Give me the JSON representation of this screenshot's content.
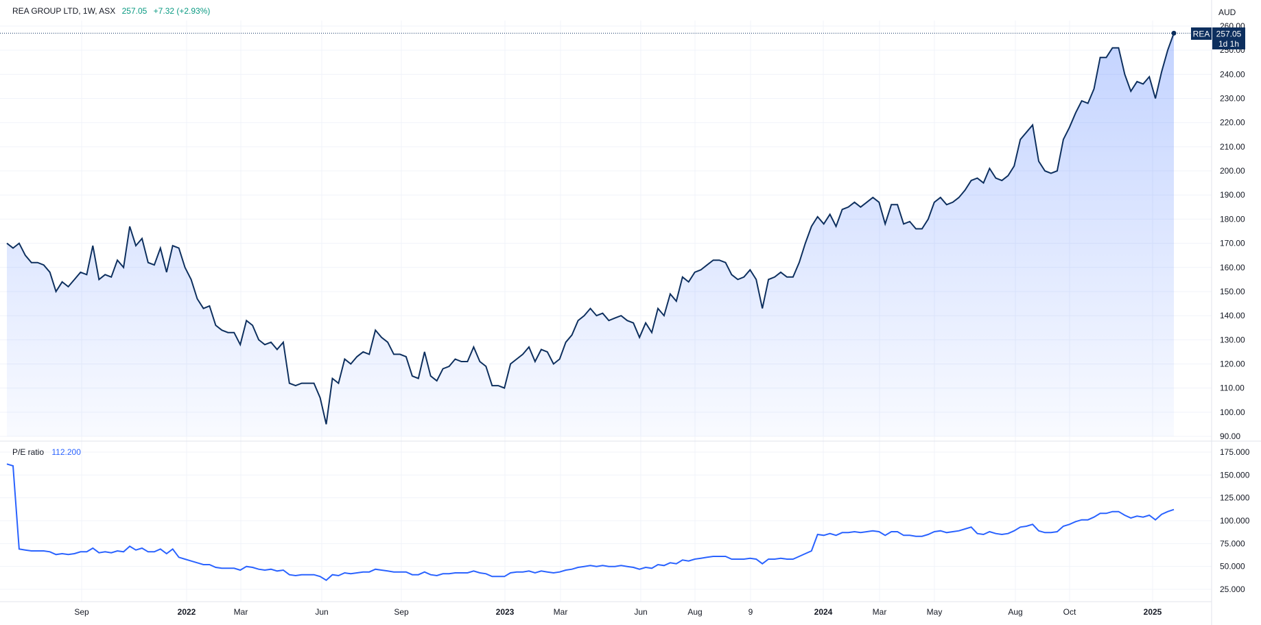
{
  "header": {
    "symbol": "REA GROUP LTD, 1W, ASX",
    "last": "257.05",
    "change": "+7.32 (+2.93%)"
  },
  "currency": "AUD",
  "price_tag": {
    "ticker": "REA",
    "value": "257.05",
    "countdown": "1d 1h"
  },
  "pe_panel": {
    "label": "P/E ratio",
    "value": "112.200"
  },
  "x_axis_labels": [
    "Sep",
    "2022",
    "Mar",
    "Jun",
    "Sep",
    "2023",
    "Mar",
    "Jun",
    "Aug",
    "9",
    "2024",
    "Mar",
    "May",
    "Aug",
    "Oct",
    "2025"
  ],
  "colors": {
    "price_line": "#0d2f5e",
    "price_fill": "#2962ff",
    "pe_line": "#2962ff",
    "grid": "#f0f3fa",
    "tag_bg": "#0d2f5e",
    "axis_text": "#131722",
    "pe_value": "#2962ff",
    "up": "#089981"
  },
  "chart_data": [
    {
      "type": "area",
      "series": [
        {
          "name": "REA",
          "values": [
            170,
            168,
            170,
            165,
            162,
            162,
            161,
            158,
            150,
            154,
            152,
            155,
            158,
            157,
            169,
            155,
            157,
            156,
            163,
            160,
            177,
            169,
            172,
            162,
            161,
            168,
            158,
            169,
            168,
            160,
            155,
            147,
            143,
            144,
            136,
            134,
            133,
            133,
            128,
            138,
            136,
            130,
            128,
            129,
            126,
            129,
            112,
            111,
            112,
            112,
            112,
            106,
            95,
            114,
            112,
            122,
            120,
            123,
            125,
            124,
            134,
            131,
            129,
            124,
            124,
            123,
            115,
            114,
            125,
            115,
            113,
            118,
            119,
            122,
            121,
            121,
            127,
            121,
            119,
            111,
            111,
            110,
            120,
            122,
            124,
            127,
            121,
            126,
            125,
            120,
            122,
            129,
            132,
            138,
            140,
            143,
            140,
            141,
            138,
            139,
            140,
            138,
            137,
            131,
            137,
            133,
            143,
            140,
            149,
            146,
            156,
            154,
            158,
            159,
            161,
            163,
            163,
            162,
            157,
            155,
            156,
            159,
            155,
            143,
            155,
            156,
            158,
            156,
            156,
            162,
            170,
            177,
            181,
            178,
            182,
            177,
            184,
            185,
            187,
            185,
            187,
            189,
            187,
            178,
            186,
            186,
            178,
            179,
            176,
            176,
            180,
            187,
            189,
            186,
            187,
            189,
            192,
            196,
            197,
            195,
            201,
            197,
            196,
            198,
            202,
            213,
            216,
            219,
            204,
            200,
            199,
            200,
            213,
            218,
            224,
            229,
            228,
            234,
            247,
            247,
            251,
            251,
            240,
            233,
            237,
            236,
            239,
            230,
            241,
            250,
            257.05
          ]
        }
      ],
      "ylim": [
        90,
        260
      ],
      "y_ticks": [
        "90.00",
        "100.00",
        "110.00",
        "120.00",
        "130.00",
        "140.00",
        "150.00",
        "160.00",
        "170.00",
        "180.00",
        "190.00",
        "200.00",
        "210.00",
        "220.00",
        "230.00",
        "240.00",
        "250.00",
        "260.00"
      ],
      "ylabel": "",
      "xlabel": "",
      "title": ""
    },
    {
      "type": "line",
      "series": [
        {
          "name": "P/E ratio",
          "values": [
            162,
            160,
            69,
            68,
            67,
            67,
            67,
            66,
            63,
            64,
            63,
            64,
            66,
            66,
            70,
            65,
            66,
            65,
            67,
            66,
            72,
            68,
            70,
            66,
            66,
            69,
            64,
            69,
            60,
            58,
            56,
            54,
            52,
            52,
            49,
            48,
            48,
            48,
            46,
            50,
            49,
            47,
            46,
            47,
            45,
            46,
            41,
            40,
            41,
            41,
            41,
            39,
            35,
            41,
            40,
            43,
            42,
            43,
            44,
            44,
            47,
            46,
            45,
            44,
            44,
            44,
            41,
            41,
            44,
            41,
            40,
            42,
            42,
            43,
            43,
            43,
            45,
            43,
            42,
            39,
            39,
            39,
            43,
            44,
            44,
            45,
            43,
            45,
            44,
            43,
            44,
            46,
            47,
            49,
            50,
            51,
            50,
            51,
            50,
            50,
            51,
            50,
            49,
            47,
            49,
            48,
            52,
            51,
            54,
            53,
            57,
            56,
            58,
            59,
            60,
            61,
            61,
            61,
            58,
            58,
            58,
            59,
            58,
            53,
            58,
            58,
            59,
            58,
            58,
            61,
            64,
            67,
            85,
            84,
            86,
            84,
            87,
            87,
            88,
            87,
            88,
            89,
            88,
            84,
            88,
            88,
            84,
            84,
            83,
            83,
            85,
            88,
            89,
            87,
            88,
            89,
            91,
            93,
            86,
            85,
            88,
            86,
            85,
            86,
            89,
            93,
            94,
            96,
            89,
            87,
            87,
            88,
            94,
            96,
            99,
            101,
            101,
            104,
            108,
            108,
            110,
            110,
            106,
            103,
            105,
            104,
            106,
            101,
            107,
            110,
            112.2
          ]
        }
      ],
      "ylim": [
        15,
        180
      ],
      "y_ticks": [
        "25.000",
        "50.000",
        "75.000",
        "100.000",
        "125.000",
        "150.000",
        "175.000"
      ],
      "ylabel": "",
      "xlabel": "",
      "title": ""
    }
  ]
}
